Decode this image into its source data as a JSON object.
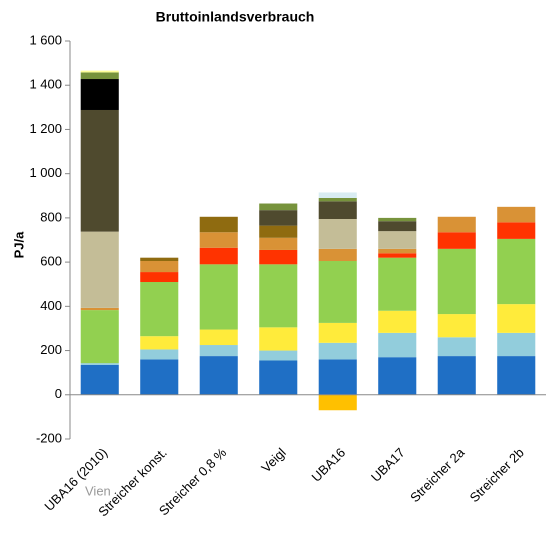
{
  "chart_data": {
    "type": "bar",
    "stacked": true,
    "title": "Bruttoinlandsverbrauch",
    "ylabel": "PJ/a",
    "footnote": "Vien",
    "categories": [
      "UBA16 (2010)",
      "Streicher konst.",
      "Streicher 0,8 %",
      "Veigl",
      "UBA16",
      "UBA17",
      "Streicher 2a",
      "Streicher 2b"
    ],
    "series": [
      {
        "color": "#1f6fc5",
        "values": [
          135,
          160,
          175,
          155,
          160,
          170,
          175,
          175
        ]
      },
      {
        "color": "#92cddc",
        "values": [
          8,
          45,
          50,
          45,
          75,
          110,
          85,
          105
        ]
      },
      {
        "color": "#ffeb3b",
        "values": [
          0,
          60,
          70,
          105,
          90,
          100,
          105,
          130
        ]
      },
      {
        "color": "#92d050",
        "values": [
          240,
          245,
          295,
          285,
          280,
          240,
          295,
          295
        ]
      },
      {
        "color": "#ff3300",
        "values": [
          0,
          45,
          75,
          65,
          0,
          20,
          75,
          75
        ]
      },
      {
        "color": "#d99236",
        "values": [
          10,
          50,
          70,
          55,
          55,
          20,
          70,
          70
        ]
      },
      {
        "color": "#c4bd97",
        "values": [
          345,
          0,
          0,
          0,
          135,
          80,
          0,
          0
        ]
      },
      {
        "color": "#8f6b10",
        "values": [
          0,
          15,
          70,
          55,
          0,
          0,
          0,
          0
        ]
      },
      {
        "color": "#4f4a2e",
        "values": [
          550,
          0,
          0,
          70,
          80,
          45,
          0,
          0
        ]
      },
      {
        "color": "#000000",
        "values": [
          140,
          0,
          0,
          0,
          0,
          0,
          0,
          0
        ]
      },
      {
        "color": "#77933c",
        "values": [
          30,
          0,
          0,
          30,
          15,
          15,
          0,
          0
        ]
      },
      {
        "color": "#d9ecf2",
        "values": [
          0,
          0,
          0,
          0,
          25,
          0,
          0,
          0
        ]
      },
      {
        "color": "#ffff99",
        "values": [
          8,
          0,
          0,
          0,
          0,
          0,
          0,
          0
        ]
      },
      {
        "color": "#ffc000",
        "values": [
          0,
          0,
          0,
          0,
          -70,
          0,
          0,
          0
        ]
      }
    ],
    "ylim": [
      -200,
      1600
    ],
    "yticks": [
      -200,
      0,
      200,
      400,
      600,
      800,
      {
        "value": 1000,
        "label": "1 000"
      },
      {
        "value": 1200,
        "label": "1 200"
      },
      {
        "value": 1400,
        "label": "1 400"
      },
      {
        "value": 1600,
        "label": "1 600"
      }
    ],
    "grid": false
  }
}
